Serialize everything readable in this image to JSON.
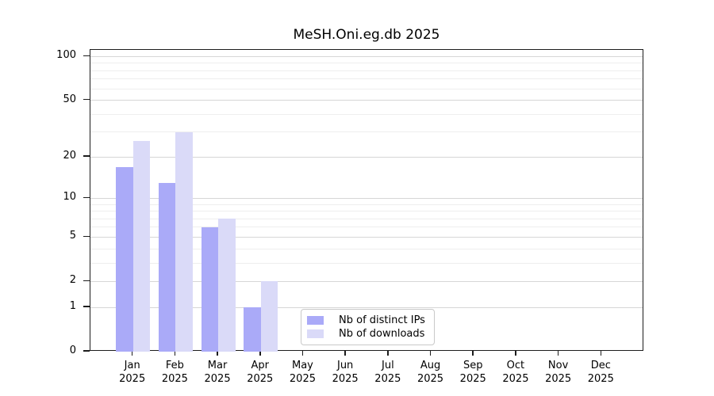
{
  "chart_data": {
    "type": "bar",
    "title": "MeSH.Oni.eg.db 2025",
    "categories": [
      "Jan",
      "Feb",
      "Mar",
      "Apr",
      "May",
      "Jun",
      "Jul",
      "Aug",
      "Sep",
      "Oct",
      "Nov",
      "Dec"
    ],
    "x_year": "2025",
    "series": [
      {
        "name": "Nb of distinct IPs",
        "color": "#aaaaf8",
        "values": [
          17,
          13,
          6,
          1,
          0,
          0,
          0,
          0,
          0,
          0,
          0,
          0
        ]
      },
      {
        "name": "Nb of downloads",
        "color": "#dadaf8",
        "values": [
          26,
          30,
          7,
          2,
          0,
          0,
          0,
          0,
          0,
          0,
          0,
          0
        ]
      }
    ],
    "yaxis": {
      "scale": "log1p",
      "ticks": [
        0,
        1,
        2,
        5,
        10,
        20,
        50,
        100
      ],
      "minor_gridlines": [
        3,
        4,
        6,
        7,
        8,
        9,
        30,
        40,
        60,
        70,
        80,
        90
      ],
      "ylim": [
        0,
        111
      ]
    },
    "legend": {
      "position": "lower center",
      "entries": [
        "Nb of distinct IPs",
        "Nb of downloads"
      ]
    },
    "grid": true,
    "colors": {
      "spine": "#1c1c1c",
      "major_grid": "#d6d6d6",
      "minor_grid": "#eeeeee",
      "text": "#000000"
    }
  }
}
